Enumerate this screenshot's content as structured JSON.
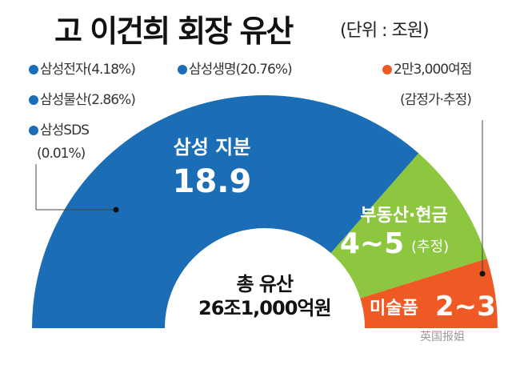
{
  "title": "고 이건희 회장 유산",
  "unit": "(단위 : 조원)",
  "legend": {
    "samsung": [
      {
        "label": "삼성전자(4.18%)"
      },
      {
        "label": "삼성생명(20.76%)"
      },
      {
        "label": "삼성물산(2.86%)"
      },
      {
        "label": "삼성SDS"
      },
      {
        "label": "(0.01%)"
      }
    ],
    "art": [
      {
        "label": "2만3,000여점"
      },
      {
        "label": "(감정가·추정)"
      }
    ]
  },
  "total": {
    "label": "총 유산",
    "value": "26조1,000억원"
  },
  "watermark": "英国报姐",
  "chart_data": {
    "type": "pie",
    "shape": "half-donut",
    "unit": "조원",
    "slices": [
      {
        "name": "삼성 지분",
        "value": 18.9,
        "value_label": "18.9",
        "note": "",
        "color": "#1b6db5"
      },
      {
        "name": "부동산·현금",
        "value": [
          4,
          5
        ],
        "value_label": "4~5",
        "note": "(추정)",
        "color": "#8dc63f"
      },
      {
        "name": "미술품",
        "value": [
          2,
          3
        ],
        "value_label": "2~3",
        "note": "",
        "color": "#ef5a24"
      }
    ]
  }
}
